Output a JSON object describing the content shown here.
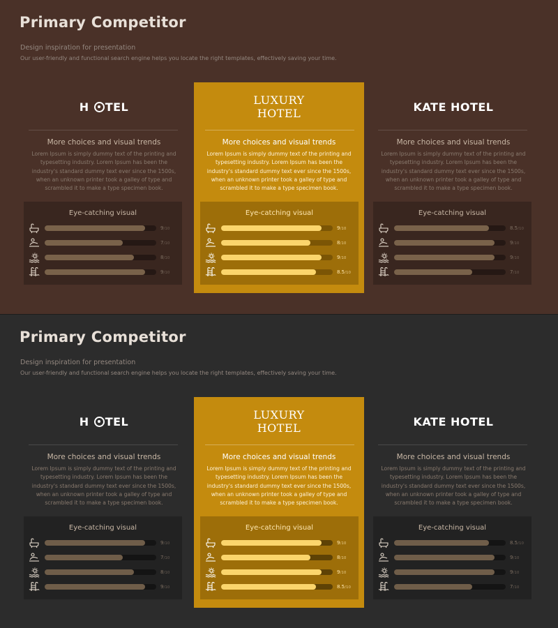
{
  "slides": [
    {
      "title": "Primary Competitor",
      "subtitle": "Design inspiration for presentation",
      "description": "Our user-friendly and functional search engine helps you locate the right templates, effectively saving your time."
    },
    {
      "title": "Primary Competitor",
      "subtitle": "Design inspiration for presentation",
      "description": "Our user-friendly and functional search engine helps you locate the right templates, effectively saving your time."
    }
  ],
  "cards": [
    {
      "logo_parts": [
        "H ",
        "TEL"
      ],
      "heading": "More choices and visual trends",
      "body": "Lorem Ipsum is simply dummy text of the printing and typesetting industry. Lorem Ipsum has been the industry's standard dummy text ever since the 1500s, when an unknown printer took a galley of type and scrambled it to make a type specimen book.",
      "panel_title": "Eye-catching visual",
      "ratings": [
        {
          "icon": "bathtub-icon",
          "value": 9,
          "label": "9",
          "denominator": "/10"
        },
        {
          "icon": "spa-massage-icon",
          "value": 7,
          "label": "7",
          "denominator": "/10"
        },
        {
          "icon": "beach-sun-icon",
          "value": 8,
          "label": "8",
          "denominator": "/10"
        },
        {
          "icon": "pool-ladder-icon",
          "value": 9,
          "label": "9",
          "denominator": "/10"
        }
      ]
    },
    {
      "logo_lines": [
        "LUXURY",
        "HOTEL"
      ],
      "heading": "More choices and visual trends",
      "body": "Lorem Ipsum is simply dummy text of the printing and typesetting industry. Lorem Ipsum has been the industry's standard dummy text ever since the 1500s, when an unknown printer took a galley of type and scrambled it to make a type specimen book.",
      "panel_title": "Eye-catching visual",
      "ratings": [
        {
          "icon": "bathtub-icon",
          "value": 9,
          "label": "9",
          "denominator": "/10"
        },
        {
          "icon": "spa-massage-icon",
          "value": 8,
          "label": "8",
          "denominator": "/10"
        },
        {
          "icon": "beach-sun-icon",
          "value": 9,
          "label": "9",
          "denominator": "/10"
        },
        {
          "icon": "pool-ladder-icon",
          "value": 8.5,
          "label": "8.5",
          "denominator": "/10"
        }
      ]
    },
    {
      "logo": "KATE HOTEL",
      "heading": "More choices and visual trends",
      "body": "Lorem Ipsum is simply dummy text of the printing and typesetting industry. Lorem Ipsum has been the industry's standard dummy text ever since the 1500s, when an unknown printer took a galley of type and scrambled it to make a type specimen book.",
      "panel_title": "Eye-catching visual",
      "ratings": [
        {
          "icon": "bathtub-icon",
          "value": 8.5,
          "label": "8.5",
          "denominator": "/10"
        },
        {
          "icon": "spa-massage-icon",
          "value": 9,
          "label": "9",
          "denominator": "/10"
        },
        {
          "icon": "beach-sun-icon",
          "value": 9,
          "label": "9",
          "denominator": "/10"
        },
        {
          "icon": "pool-ladder-icon",
          "value": 7,
          "label": "7",
          "denominator": "/10"
        }
      ]
    }
  ],
  "colors": {
    "slide_1_background": "#4a3128",
    "slide_2_background": "#2c2c2c",
    "accent_card": "#c48b0e",
    "accent_bar": "#fbd56c",
    "muted_bar": "#79624a"
  }
}
